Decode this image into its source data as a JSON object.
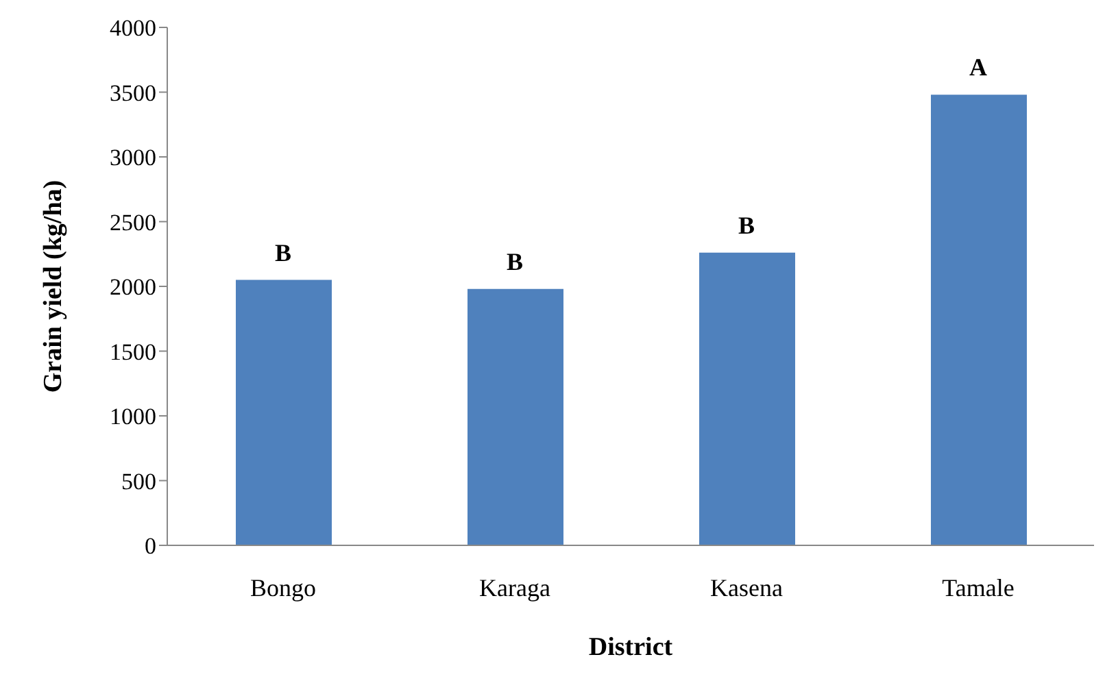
{
  "chart_data": {
    "type": "bar",
    "xlabel": "District",
    "ylabel": "Grain yield (kg/ha)",
    "categories": [
      "Bongo",
      "Karaga",
      "Kasena",
      "Tamale"
    ],
    "values": [
      2050,
      1980,
      2260,
      3480
    ],
    "color": "#4f81bd",
    "ylim": [
      0,
      4000
    ],
    "yticks": [
      0,
      500,
      1000,
      1500,
      2000,
      2500,
      3000,
      3500,
      4000
    ],
    "grid": false,
    "legend": false,
    "annotations": [
      {
        "text": "B",
        "x": "Bongo",
        "y": 2050
      },
      {
        "text": "B",
        "x": "Karaga",
        "y": 1980
      },
      {
        "text": "B",
        "x": "Kasena",
        "y": 2260
      },
      {
        "text": "A",
        "x": "Tamale",
        "y": 3480
      }
    ]
  }
}
